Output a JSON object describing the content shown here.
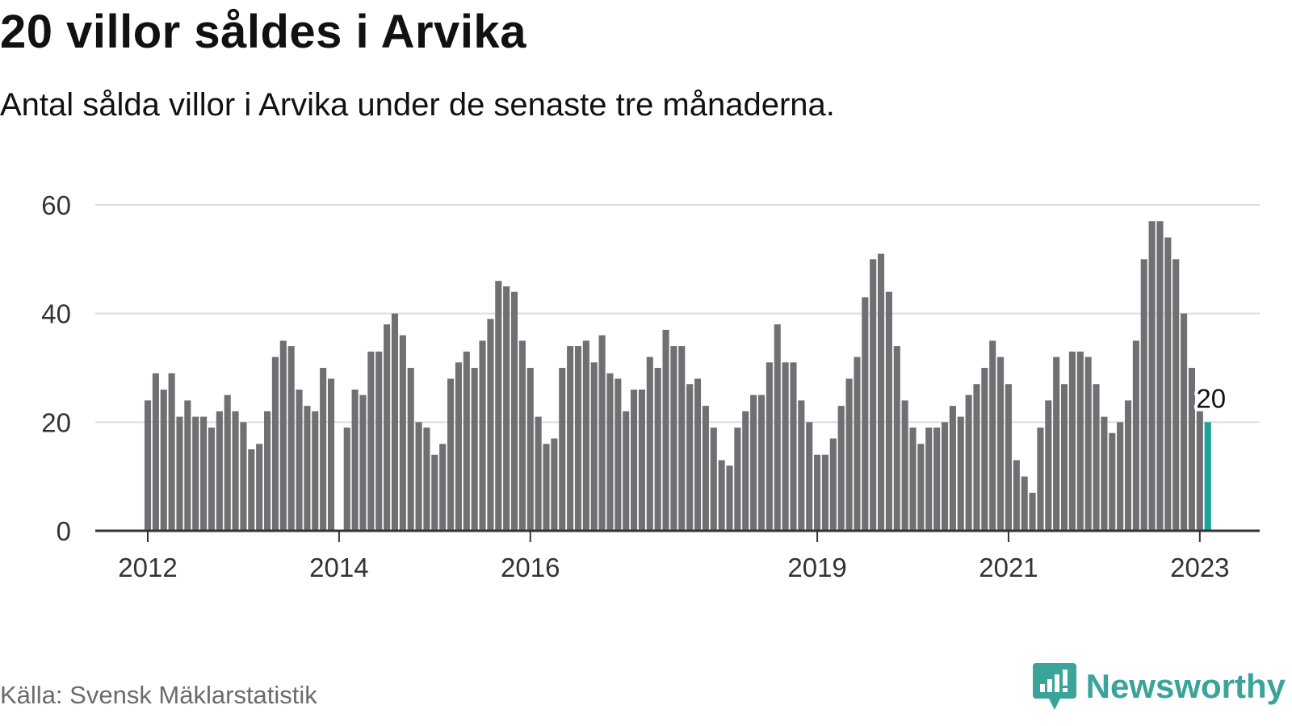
{
  "header": {
    "title": "20 villor såldes i Arvika",
    "subtitle": "Antal sålda villor i Arvika under de senaste tre månaderna."
  },
  "footer": {
    "source": "Källa: Svensk Mäklarstatistik",
    "brand": "Newsworthy",
    "brand_icon": "newsworthy-chart-bubble-icon"
  },
  "colors": {
    "bar": "#707074",
    "highlight": "#1aa39a",
    "grid": "#dcdcdc",
    "axis": "#333333",
    "brand": "#3aa39a"
  },
  "chart_data": {
    "type": "bar",
    "title": "20 villor såldes i Arvika",
    "subtitle": "Antal sålda villor i Arvika under de senaste tre månaderna.",
    "xlabel": "",
    "ylabel": "",
    "ylim": [
      0,
      60
    ],
    "yticks": [
      0,
      20,
      40,
      60
    ],
    "grid": true,
    "x_start": "2012-01",
    "x_end": "2023-02",
    "xticks": [
      {
        "label": "2012",
        "date": "2012-01"
      },
      {
        "label": "2014",
        "date": "2014-01"
      },
      {
        "label": "2016",
        "date": "2016-01"
      },
      {
        "label": "2019",
        "date": "2019-01"
      },
      {
        "label": "2021",
        "date": "2021-01"
      },
      {
        "label": "2023",
        "date": "2023-01"
      }
    ],
    "series": [
      {
        "values": [
          24,
          29,
          26,
          29,
          21,
          24,
          21,
          21,
          19,
          22,
          25,
          22,
          20,
          15,
          16,
          22,
          32,
          35,
          34,
          26,
          23,
          22,
          30,
          28,
          null,
          19,
          26,
          25,
          33,
          33,
          38,
          40,
          36,
          30,
          20,
          19,
          14,
          16,
          28,
          31,
          33,
          30,
          35,
          39,
          46,
          45,
          44,
          35,
          30,
          21,
          16,
          17,
          30,
          34,
          34,
          35,
          31,
          36,
          29,
          28,
          22,
          26,
          26,
          32,
          30,
          37,
          34,
          34,
          27,
          28,
          23,
          19,
          13,
          12,
          19,
          22,
          25,
          25,
          31,
          38,
          31,
          31,
          24,
          20,
          14,
          14,
          17,
          23,
          28,
          32,
          43,
          50,
          51,
          44,
          34,
          24,
          19,
          16,
          19,
          19,
          20,
          23,
          21,
          25,
          27,
          30,
          35,
          32,
          27,
          13,
          10,
          7,
          19,
          24,
          32,
          27,
          33,
          33,
          32,
          27,
          21,
          18,
          20,
          24,
          35,
          50,
          57,
          57,
          54,
          50,
          40,
          30,
          22,
          20
        ]
      }
    ],
    "highlight": {
      "index": 133,
      "value": 20,
      "label": "20"
    }
  }
}
